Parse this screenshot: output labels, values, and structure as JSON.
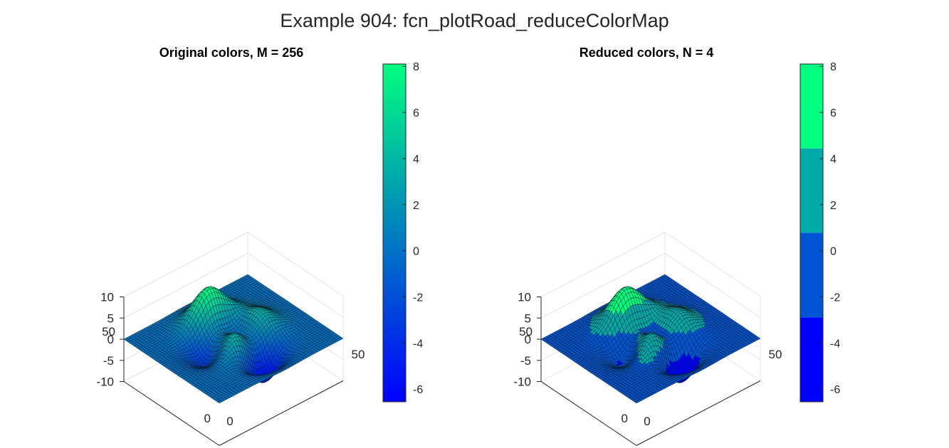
{
  "figure": {
    "title": "Example 904: fcn_plotRoad_reduceColorMap"
  },
  "chart_data": [
    {
      "type": "surface",
      "title": "Original colors, M = 256",
      "colormap": "winter",
      "colormap_levels": 256,
      "x_ticks": [
        "0",
        "50"
      ],
      "y_ticks": [
        "0",
        "50"
      ],
      "z_ticks": [
        "10",
        "5",
        "0",
        "-5",
        "-10"
      ],
      "zlim": [
        -10,
        10
      ],
      "colorbar": {
        "ticks": [
          "8",
          "6",
          "4",
          "2",
          "0",
          "-2",
          "-4",
          "-6"
        ],
        "range": [
          -6.55,
          8.1
        ],
        "colors": [
          "#00ff80",
          "#0000ff"
        ]
      }
    },
    {
      "type": "surface",
      "title": "Reduced colors, N = 4",
      "colormap": "winter",
      "colormap_levels": 4,
      "x_ticks": [
        "0",
        "50"
      ],
      "y_ticks": [
        "0",
        "50"
      ],
      "z_ticks": [
        "10",
        "5",
        "0",
        "-5",
        "-10"
      ],
      "zlim": [
        -10,
        10
      ],
      "colorbar": {
        "ticks": [
          "8",
          "6",
          "4",
          "2",
          "0",
          "-2",
          "-4",
          "-6"
        ],
        "range": [
          -6.55,
          8.1
        ],
        "bands": [
          {
            "from": -6.55,
            "to": -2.89,
            "color": "#0000ff"
          },
          {
            "from": -2.89,
            "to": 0.78,
            "color": "#0055d5"
          },
          {
            "from": 0.78,
            "to": 4.44,
            "color": "#00aaaa"
          },
          {
            "from": 4.44,
            "to": 8.1,
            "color": "#00ff80"
          }
        ]
      }
    }
  ]
}
